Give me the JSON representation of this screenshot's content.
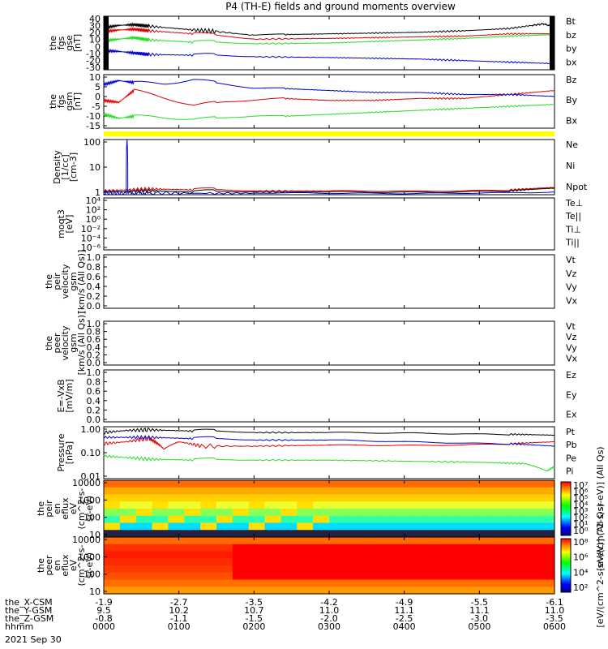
{
  "title": "P4 (TH-E) fields and ground moments overview",
  "colors": {
    "black": "#000000",
    "red": "#dd0000",
    "green": "#22dd22",
    "blue": "#0000cc",
    "yellow": "#ffff00"
  },
  "chart_data": [
    {
      "id": "fgs_gse",
      "type": "line",
      "ylabel": [
        "the",
        "fgs",
        "gse",
        "[nT]"
      ],
      "yticks": [
        "40",
        "30",
        "20",
        "10",
        "0",
        "-10",
        "-20",
        "-30"
      ],
      "ylim": [
        -30,
        40
      ],
      "series": [
        {
          "name": "Bt",
          "color": "black",
          "x": [
            0,
            20,
            40,
            60,
            120,
            150,
            200,
            240,
            300,
            360,
            420,
            480,
            540,
            570,
            585,
            600
          ],
          "y": [
            25,
            28,
            29,
            27,
            22,
            20,
            15,
            16,
            17,
            18,
            19,
            21,
            24,
            28,
            30,
            26
          ]
        },
        {
          "name": "bz",
          "color": "red",
          "x": [
            0,
            20,
            40,
            60,
            120,
            200,
            300,
            360,
            420,
            480,
            540,
            600
          ],
          "y": [
            20,
            22,
            23,
            21,
            17,
            10,
            11,
            12,
            13,
            14,
            17,
            17
          ]
        },
        {
          "name": "by",
          "color": "green",
          "x": [
            0,
            20,
            40,
            60,
            120,
            200,
            300,
            360,
            420,
            480,
            540,
            600
          ],
          "y": [
            8,
            10,
            12,
            9,
            6,
            4,
            5,
            7,
            9,
            11,
            14,
            16
          ]
        },
        {
          "name": "bx",
          "color": "blue",
          "x": [
            0,
            20,
            40,
            60,
            120,
            200,
            300,
            360,
            420,
            480,
            540,
            570,
            600
          ],
          "y": [
            -5,
            -6,
            -8,
            -10,
            -11,
            -13,
            -14,
            -15,
            -16,
            -18,
            -20,
            -21,
            -22
          ]
        }
      ]
    },
    {
      "id": "fgs_gsm",
      "type": "line",
      "ylabel": [
        "the",
        "fgs",
        "gsm",
        "[nT]"
      ],
      "yticks": [
        "10",
        "5",
        "0",
        "-5",
        "-10",
        "-15"
      ],
      "ylim": [
        -17,
        10
      ],
      "series": [
        {
          "name": "Bz",
          "color": "red",
          "x": [
            0,
            20,
            40,
            80,
            120,
            160,
            200,
            240,
            300,
            360,
            420,
            480,
            540,
            600
          ],
          "y": [
            -3,
            -4,
            2,
            -2,
            -6,
            -4,
            -3,
            -2,
            -3,
            -3,
            -2,
            -2,
            0,
            2
          ]
        },
        {
          "name": "By",
          "color": "green",
          "x": [
            0,
            20,
            40,
            80,
            120,
            160,
            200,
            240,
            300,
            360,
            420,
            480,
            540,
            600
          ],
          "y": [
            -10,
            -12,
            -11,
            -12,
            -13,
            -12,
            -11,
            -11,
            -10,
            -9,
            -8,
            -7,
            -6,
            -5
          ]
        },
        {
          "name": "Bx",
          "color": "blue",
          "x": [
            0,
            20,
            40,
            80,
            120,
            160,
            200,
            240,
            300,
            360,
            420,
            480,
            540,
            600
          ],
          "y": [
            5,
            7,
            6,
            5,
            7,
            5,
            3,
            3,
            2,
            1,
            1,
            0,
            0,
            -1
          ]
        }
      ]
    },
    {
      "id": "density",
      "type": "line",
      "log": true,
      "ylabel": [
        "Density",
        "[1/cc]",
        "[cm-3]"
      ],
      "yticks": [
        "100",
        "10",
        "1"
      ],
      "ylim": [
        0.6,
        200
      ],
      "series": [
        {
          "name": "Ne",
          "color": "red",
          "x": [
            0,
            60,
            120,
            200,
            300,
            420,
            540,
            600
          ],
          "y": [
            0.9,
            1.1,
            1.0,
            0.9,
            0.9,
            0.9,
            1.0,
            1.3
          ]
        },
        {
          "name": "Ni",
          "color": "black",
          "x": [
            0,
            60,
            120,
            200,
            300,
            420,
            540,
            600
          ],
          "y": [
            0.8,
            0.9,
            0.8,
            0.8,
            0.8,
            0.8,
            0.9,
            1.2
          ]
        },
        {
          "name": "Npot",
          "color": "blue",
          "x": [
            0,
            30,
            31,
            32,
            60,
            200,
            400,
            600
          ],
          "y": [
            0.7,
            0.7,
            180,
            0.7,
            0.7,
            0.7,
            0.7,
            0.8
          ]
        }
      ]
    },
    {
      "id": "moqt3",
      "type": "line",
      "log": true,
      "ylabel": [
        "moqt3",
        "[eV]"
      ],
      "yticks": [
        "10⁴",
        "10²",
        "10⁰",
        "10⁻²",
        "10⁻⁴",
        "10⁻⁶"
      ],
      "legend": [
        "Te⊥",
        "Te||",
        "Ti⊥",
        "Ti||"
      ],
      "legend_colors": [
        "red",
        "black",
        "red",
        "green"
      ]
    },
    {
      "id": "peir_vel",
      "type": "line",
      "ylabel": [
        "the",
        "peir",
        "velocity",
        "gsm",
        "[km/s (All Qs)]"
      ],
      "yticks": [
        "1.0",
        "0.8",
        "0.6",
        "0.4",
        "0.2",
        "0.0"
      ],
      "legend": [
        "Vt",
        "Vz",
        "Vy",
        "Vx"
      ],
      "legend_colors": [
        "black",
        "red",
        "green",
        "blue"
      ]
    },
    {
      "id": "peer_vel",
      "type": "line",
      "ylabel": [
        "the",
        "peer",
        "velocity",
        "gsm",
        "[km/s (All Qs)]"
      ],
      "yticks": [
        "1.0",
        "0.8",
        "0.6",
        "0.4",
        "0.2",
        "0.0"
      ],
      "legend": [
        "Vt",
        "Vz",
        "Vy",
        "Vx"
      ],
      "legend_colors": [
        "black",
        "red",
        "green",
        "blue"
      ]
    },
    {
      "id": "efield",
      "type": "line",
      "ylabel": [
        "E=-VxB",
        "[mV/m]"
      ],
      "yticks": [
        "1.0",
        "0.8",
        "0.6",
        "0.4",
        "0.2",
        "0.0"
      ],
      "legend": [
        "Ez",
        "Ey",
        "Ex"
      ],
      "legend_colors": [
        "red",
        "green",
        "blue"
      ]
    },
    {
      "id": "pressure",
      "type": "line",
      "log": true,
      "ylabel": [
        "Pressure",
        "[nPa]"
      ],
      "yticks": [
        "1.00",
        "0.10",
        "0.01"
      ],
      "ylim": [
        0.01,
        1.2
      ],
      "series": [
        {
          "name": "Pt",
          "color": "black",
          "x": [
            0,
            30,
            60,
            120,
            200,
            300,
            420,
            540,
            600
          ],
          "y": [
            0.7,
            0.85,
            0.9,
            0.8,
            0.7,
            0.7,
            0.68,
            0.6,
            0.55
          ]
        },
        {
          "name": "Pb",
          "color": "red",
          "x": [
            0,
            30,
            60,
            80,
            100,
            130,
            200,
            300,
            420,
            540,
            600
          ],
          "y": [
            0.25,
            0.3,
            0.4,
            0.15,
            0.3,
            0.2,
            0.2,
            0.22,
            0.22,
            0.25,
            0.3
          ]
        },
        {
          "name": "Pe",
          "color": "green",
          "x": [
            0,
            60,
            120,
            200,
            300,
            400,
            500,
            560,
            590,
            600
          ],
          "y": [
            0.08,
            0.06,
            0.055,
            0.055,
            0.055,
            0.05,
            0.045,
            0.04,
            0.02,
            0.03
          ]
        },
        {
          "name": "Pi",
          "color": "blue",
          "x": [
            0,
            60,
            120,
            200,
            300,
            420,
            540,
            600
          ],
          "y": [
            0.45,
            0.45,
            0.4,
            0.35,
            0.35,
            0.3,
            0.25,
            0.2
          ]
        }
      ]
    },
    {
      "id": "peir_eflux",
      "type": "heatmap",
      "ylabel": [
        "the",
        "peir",
        "en",
        "eflux",
        "eV",
        "(cm^2-s-",
        "sr-eV)"
      ],
      "yticks": [
        "10000",
        "1000",
        "100",
        "10"
      ],
      "colorbar_ticks": [
        "10⁷",
        "10⁶",
        "10⁵",
        "10⁴",
        "10³",
        "10²",
        "10¹",
        "10⁰"
      ],
      "colorbar_label": "[eV/(cm^2-s-sr-eV)] (All Qs)"
    },
    {
      "id": "peer_eflux",
      "type": "heatmap",
      "ylabel": [
        "the",
        "peer",
        "en",
        "eflux",
        "eV",
        "(cm^2-s-",
        "sr-eV)"
      ],
      "yticks": [
        "10000",
        "1000",
        "100",
        "10"
      ],
      "colorbar_ticks": [
        "10⁸",
        "10⁶",
        "10⁴",
        "10²"
      ],
      "colorbar_label": "[eV/(cm^2-s-sr-eV)] (All Qs)"
    }
  ],
  "xaxis": {
    "rows": [
      {
        "label": "the_X-CSM",
        "values": [
          "-1.9",
          "-2.7",
          "-3.5",
          "-4.2",
          "-4.9",
          "-5.5",
          "-6.1"
        ]
      },
      {
        "label": "the_Y-GSM",
        "values": [
          "9.5",
          "10.2",
          "10.7",
          "11.0",
          "11.1",
          "11.1",
          "11.0"
        ]
      },
      {
        "label": "the_Z-GSM",
        "values": [
          "-0.8",
          "-1.1",
          "-1.5",
          "-2.0",
          "-2.5",
          "-3.0",
          "-3.5"
        ]
      },
      {
        "label": "hhmm",
        "values": [
          "0000",
          "0100",
          "0200",
          "0300",
          "0400",
          "0500",
          "0600"
        ]
      }
    ],
    "date": "2021 Sep 30",
    "range_minutes": [
      0,
      600
    ]
  }
}
